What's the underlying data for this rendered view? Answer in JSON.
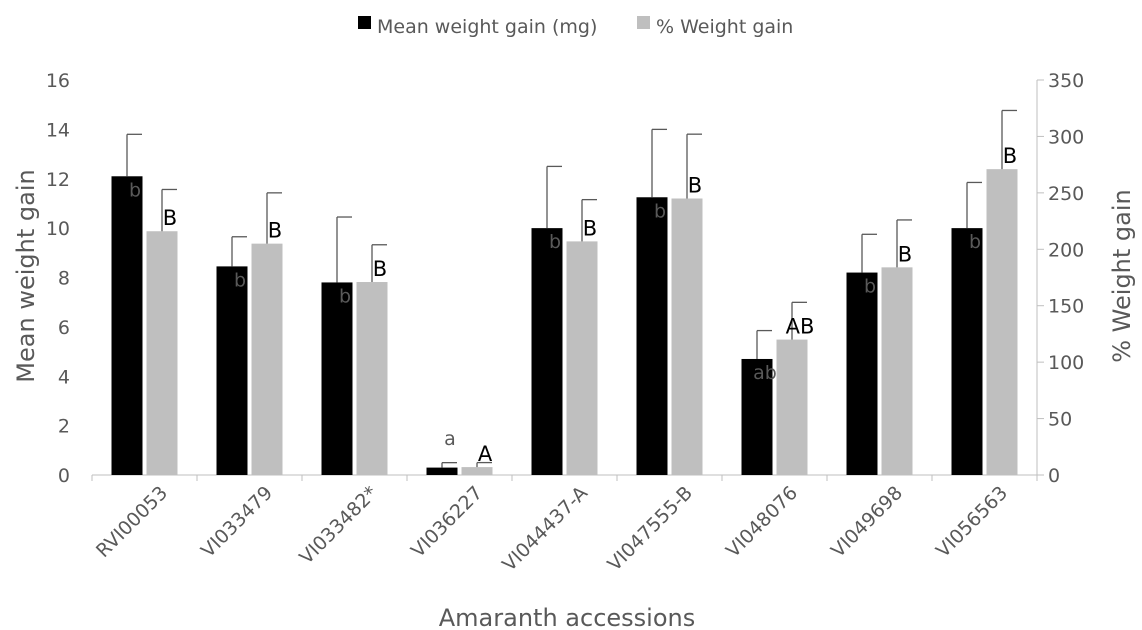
{
  "chart_data": {
    "type": "bar",
    "xlabel": "Amaranth accessions",
    "ylabel": "Mean weight gain",
    "y2label": "% Weight gain",
    "ylim": [
      0,
      16
    ],
    "y2lim": [
      0,
      350
    ],
    "yticks": [
      0,
      2,
      4,
      6,
      8,
      10,
      12,
      14,
      16
    ],
    "y2ticks": [
      0,
      50,
      100,
      150,
      200,
      250,
      300,
      350
    ],
    "legend_position": "top",
    "grid": false,
    "categories": [
      "RVI00053",
      "VI033479",
      "VI033482*",
      "VI036227",
      "VI044437-A",
      "VI047555-B",
      "VI048076",
      "VI049698",
      "VI056563"
    ],
    "series": [
      {
        "name": "Mean weight gain (mg)",
        "axis": "left",
        "color": "#000000",
        "values": [
          12.1,
          8.45,
          7.8,
          0.3,
          10.0,
          11.25,
          4.7,
          8.2,
          10.0
        ],
        "error_upper": [
          13.8,
          9.65,
          10.45,
          0.5,
          12.5,
          14.0,
          5.85,
          9.75,
          11.85
        ],
        "labels": [
          "b",
          "b",
          "b",
          "a",
          "b",
          "b",
          "ab",
          "b",
          "b"
        ]
      },
      {
        "name": "% Weight gain",
        "axis": "right",
        "color": "#bfbfbf",
        "values": [
          216,
          205,
          171,
          7,
          207,
          245,
          120,
          184,
          271
        ],
        "error_upper": [
          253,
          250,
          204,
          11,
          244,
          302,
          153,
          226,
          323
        ],
        "labels": [
          "B",
          "B",
          "B",
          "A",
          "B",
          "B",
          "AB",
          "B",
          "B"
        ]
      }
    ]
  }
}
